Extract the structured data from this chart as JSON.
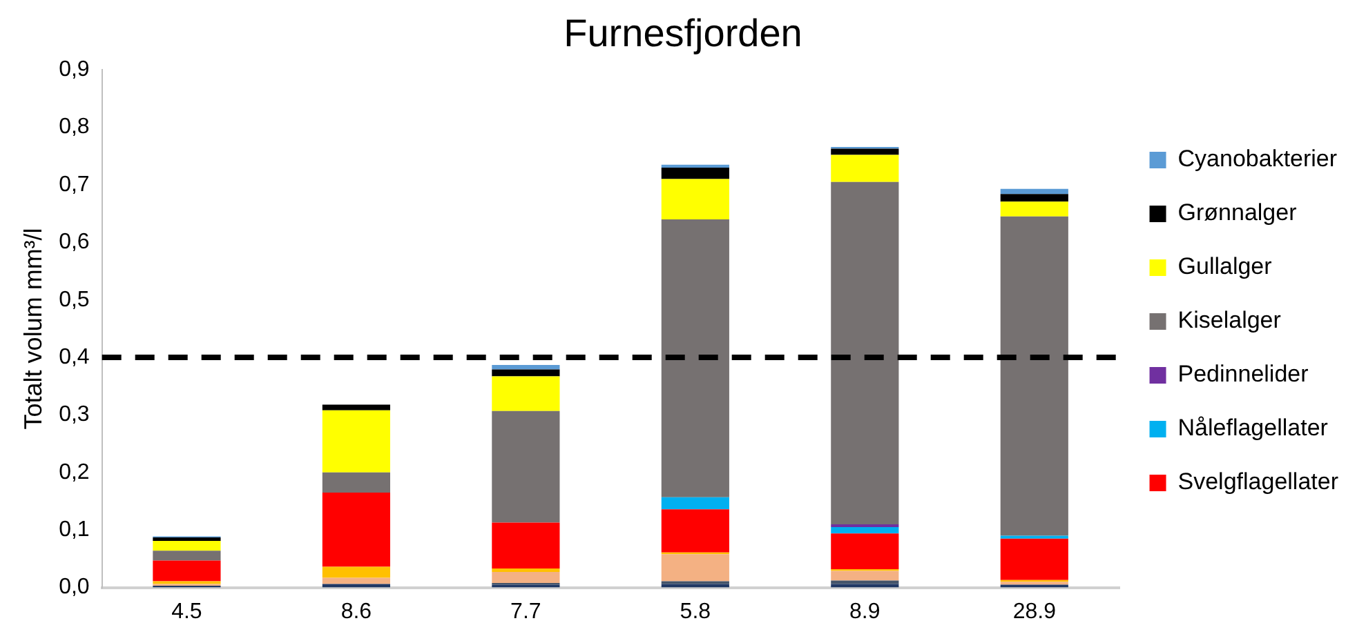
{
  "chart_data": {
    "type": "bar",
    "title": "Furnesfjorden",
    "ylabel": "Totalt volum mm³/l",
    "stacked": true,
    "categories": [
      "4.5",
      "8.6",
      "7.7",
      "5.8",
      "8.9",
      "28.9"
    ],
    "series": [
      {
        "color": "#203864",
        "values": [
          0.003,
          0.006,
          0.005,
          0.006,
          0.006,
          0.005
        ]
      },
      {
        "color": "#44546a",
        "values": [
          0,
          0,
          0.003,
          0.005,
          0.006,
          0
        ]
      },
      {
        "color": "#f4b183",
        "values": [
          0.003,
          0.011,
          0.019,
          0.047,
          0.017,
          0.005
        ]
      },
      {
        "color": "#ffc000",
        "values": [
          0.005,
          0.019,
          0.006,
          0.003,
          0.003,
          0.003
        ]
      },
      {
        "name": "Svelgflagellater",
        "color": "#ff0000",
        "values": [
          0.036,
          0.129,
          0.08,
          0.075,
          0.062,
          0.072
        ]
      },
      {
        "name": "Nåleflagellater",
        "color": "#00b0f0",
        "values": [
          0,
          0,
          0,
          0.021,
          0.011,
          0.005
        ]
      },
      {
        "name": "Pedinnelider",
        "color": "#7030a0",
        "values": [
          0,
          0,
          0,
          0,
          0.005,
          0
        ]
      },
      {
        "name": "Kiselalger",
        "color": "#767171",
        "values": [
          0.017,
          0.035,
          0.194,
          0.483,
          0.595,
          0.555
        ]
      },
      {
        "name": "Gullalger",
        "color": "#ffff00",
        "values": [
          0.017,
          0.108,
          0.06,
          0.07,
          0.047,
          0.026
        ]
      },
      {
        "name": "Grønnalger",
        "color": "#000000",
        "values": [
          0.006,
          0.01,
          0.012,
          0.02,
          0.011,
          0.013
        ]
      },
      {
        "name": "Cyanobakterier",
        "color": "#5b9bd5",
        "values": [
          0.002,
          0,
          0.008,
          0.005,
          0.003,
          0.009
        ]
      }
    ],
    "ylim": [
      0,
      0.9
    ],
    "yticks": [
      {
        "value": 0,
        "label": "0,0"
      },
      {
        "value": 0.1,
        "label": "0,1"
      },
      {
        "value": 0.2,
        "label": "0,2"
      },
      {
        "value": 0.3,
        "label": "0,3"
      },
      {
        "value": 0.4,
        "label": "0,4"
      },
      {
        "value": 0.5,
        "label": "0,5"
      },
      {
        "value": 0.6,
        "label": "0,6"
      },
      {
        "value": 0.7,
        "label": "0,7"
      },
      {
        "value": 0.8,
        "label": "0,8"
      },
      {
        "value": 0.9,
        "label": "0,9"
      }
    ],
    "ref_lines": [
      {
        "axis": "y",
        "value": 0.4,
        "color": "#000000",
        "line_style": "dashed"
      }
    ],
    "grid": false,
    "legend": "right"
  }
}
